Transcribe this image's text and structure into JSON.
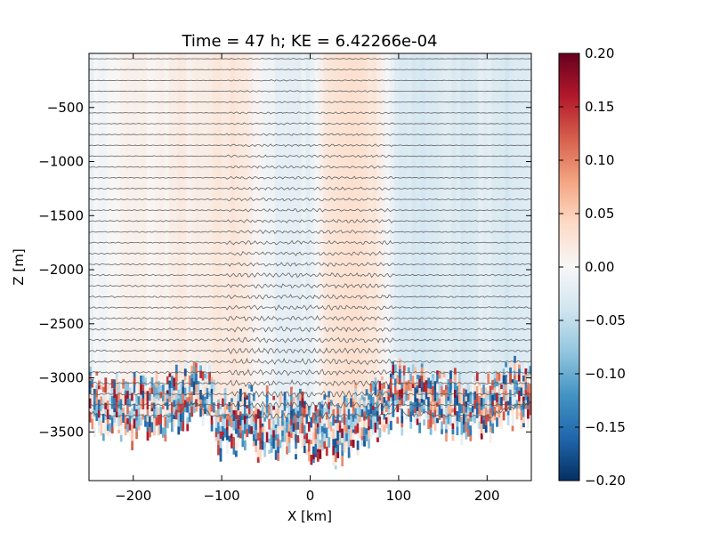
{
  "chart_data": {
    "type": "heatmap",
    "title": "Time = 47 h; KE = 6.42266e-04",
    "xlabel": "X [km]",
    "ylabel": "Z [m]",
    "xlim": [
      -250,
      250
    ],
    "ylim": [
      -3950,
      0
    ],
    "x_ticks": [
      -200,
      -100,
      0,
      100,
      200
    ],
    "x_tick_labels": [
      "−200",
      "−100",
      "0",
      "100",
      "200"
    ],
    "y_ticks": [
      -500,
      -1000,
      -1500,
      -2000,
      -2500,
      -3000,
      -3500
    ],
    "y_tick_labels": [
      "−500",
      "−1000",
      "−1500",
      "−2000",
      "−2500",
      "−3000",
      "−3500"
    ],
    "colorbar": {
      "colormap": "RdBu_r",
      "range": [
        -0.2,
        0.2
      ],
      "ticks": [
        0.2,
        0.15,
        0.1,
        0.05,
        0.0,
        -0.05,
        -0.1,
        -0.15,
        -0.2
      ],
      "tick_labels": [
        "0.20",
        "0.15",
        "0.10",
        "0.05",
        "0.00",
        "−0.05",
        "−0.10",
        "−0.15",
        "−0.20"
      ],
      "stops": [
        "#053061",
        "#2166ac",
        "#4393c3",
        "#92c5de",
        "#d1e5f0",
        "#f7f7f7",
        "#fddbc7",
        "#f4a582",
        "#d6604d",
        "#b2182b",
        "#67001f"
      ]
    },
    "contour_levels": {
      "top_depth": -50,
      "bottom_depth": -3400,
      "spacing": 100,
      "color": "#555555"
    },
    "seafloor_depth_profile": {
      "x": [
        -250,
        -230,
        -210,
        -190,
        -170,
        -150,
        -130,
        -110,
        -100,
        -90,
        -80,
        -70,
        -60,
        -50,
        -40,
        -30,
        -20,
        -10,
        0,
        10,
        20,
        30,
        40,
        50,
        60,
        70,
        80,
        90,
        100,
        110,
        130,
        150,
        170,
        190,
        210,
        230,
        250
      ],
      "z": [
        -3400,
        -3450,
        -3550,
        -3450,
        -3500,
        -3400,
        -3300,
        -3450,
        -3650,
        -3600,
        -3650,
        -3550,
        -3700,
        -3600,
        -3650,
        -3700,
        -3600,
        -3650,
        -3700,
        -3650,
        -3600,
        -3750,
        -3650,
        -3600,
        -3550,
        -3500,
        -3450,
        -3400,
        -3350,
        -3450,
        -3400,
        -3500,
        -3450,
        -3500,
        -3400,
        -3350,
        -3300
      ]
    },
    "anomaly_bands": {
      "x": [
        -250,
        -225,
        -200,
        -175,
        -150,
        -125,
        -100,
        -75,
        -50,
        -25,
        0,
        25,
        50,
        75,
        100,
        125,
        150,
        175,
        200,
        225,
        250
      ],
      "value": [
        -0.01,
        0.0,
        0.01,
        0.005,
        0.015,
        0.01,
        0.02,
        0.025,
        -0.01,
        -0.02,
        -0.015,
        0.03,
        0.035,
        0.02,
        -0.03,
        -0.035,
        -0.025,
        -0.03,
        -0.02,
        -0.035,
        -0.03
      ]
    }
  }
}
